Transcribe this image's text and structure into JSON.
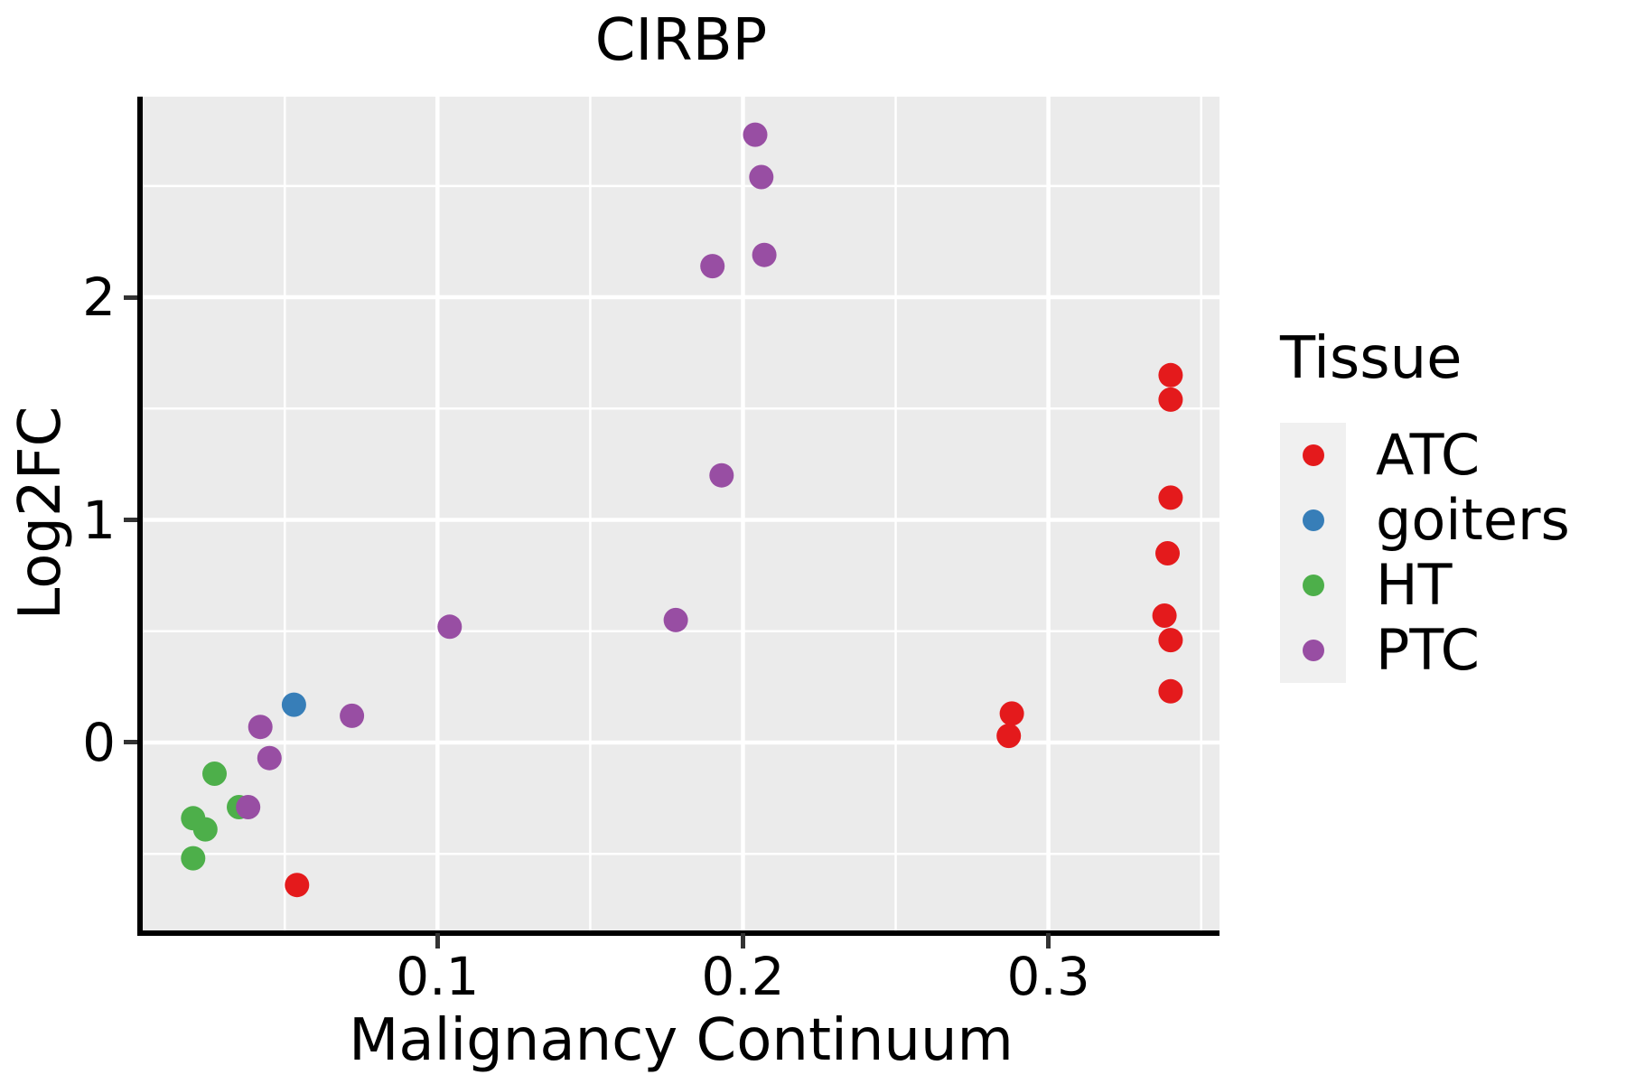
{
  "figure": {
    "title": "CIRBP",
    "colors": {
      "background": "#FFFFFF",
      "panel_background": "#EBEBEB",
      "grid": "#FFFFFF",
      "spine": "#000000",
      "tick_mark": "#333333",
      "text": "#000000",
      "legend_key_background": "#F0F0F0"
    }
  },
  "axes": {
    "x": {
      "label": "Malignancy Continuum",
      "tick_labels": [
        "0.1",
        "0.2",
        "0.3"
      ]
    },
    "y": {
      "label": "Log2FC",
      "tick_labels": [
        "0",
        "1",
        "2"
      ]
    }
  },
  "legend": {
    "title": "Tissue",
    "position": "right"
  },
  "chart_data": {
    "type": "scatter",
    "title": "CIRBP",
    "xlabel": "Malignancy Continuum",
    "ylabel": "Log2FC",
    "xlim": [
      0.0035,
      0.356
    ],
    "ylim": [
      -0.844,
      2.901
    ],
    "x_major_ticks": [
      0.1,
      0.2,
      0.3
    ],
    "x_minor_ticks": [
      0.05,
      0.15,
      0.25,
      0.35
    ],
    "y_major_ticks": [
      0,
      1,
      2
    ],
    "y_minor_ticks": [
      -0.5,
      0.5,
      1.5,
      2.5
    ],
    "grid": true,
    "legend_position": "right",
    "series": [
      {
        "name": "ATC",
        "color": "#E41A1C",
        "points": [
          [
            0.054,
            -0.64
          ],
          [
            0.287,
            0.03
          ],
          [
            0.288,
            0.13
          ],
          [
            0.34,
            0.23
          ],
          [
            0.34,
            0.46
          ],
          [
            0.338,
            0.57
          ],
          [
            0.339,
            0.85
          ],
          [
            0.34,
            1.1
          ],
          [
            0.34,
            1.54
          ],
          [
            0.34,
            1.65
          ]
        ]
      },
      {
        "name": "goiters",
        "color": "#377EB8",
        "points": [
          [
            0.053,
            0.17
          ]
        ]
      },
      {
        "name": "HT",
        "color": "#4DAF4A",
        "points": [
          [
            0.02,
            -0.52
          ],
          [
            0.024,
            -0.39
          ],
          [
            0.02,
            -0.34
          ],
          [
            0.035,
            -0.29
          ],
          [
            0.027,
            -0.14
          ]
        ]
      },
      {
        "name": "PTC",
        "color": "#984EA3",
        "points": [
          [
            0.038,
            -0.29
          ],
          [
            0.045,
            -0.07
          ],
          [
            0.042,
            0.07
          ],
          [
            0.072,
            0.12
          ],
          [
            0.104,
            0.52
          ],
          [
            0.178,
            0.55
          ],
          [
            0.193,
            1.2
          ],
          [
            0.19,
            2.14
          ],
          [
            0.207,
            2.19
          ],
          [
            0.206,
            2.54
          ],
          [
            0.204,
            2.73
          ]
        ]
      }
    ]
  }
}
